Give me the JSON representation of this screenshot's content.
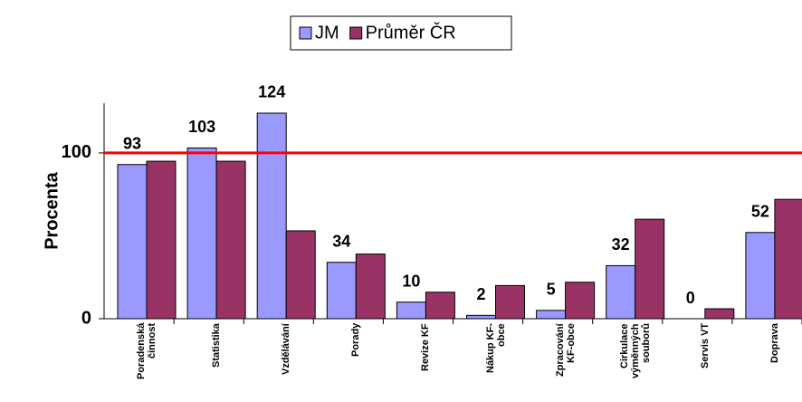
{
  "chart_data": {
    "type": "bar",
    "y_label": "Procenta",
    "categories": [
      "Poradenská\nčinnost",
      "Statistika",
      "Vzdělávání",
      "Porady",
      "Revize KF",
      "Nákup KF-\nobce",
      "Zpracování\nKF-obce",
      "Cirkulace\nvýměnných\nsouborů",
      "Servis VT",
      "Doprava"
    ],
    "series": [
      {
        "name": "JM",
        "color": "#9999ff",
        "values": [
          93,
          103,
          124,
          34,
          10,
          2,
          5,
          32,
          0,
          52
        ],
        "labels": true
      },
      {
        "name": "Průměr ČR",
        "color": "#993366",
        "values": [
          95,
          95,
          53,
          39,
          16,
          20,
          22,
          60,
          6,
          72
        ]
      }
    ],
    "reference_line": {
      "value": 100,
      "color": "#ff0000"
    },
    "ylim": [
      0,
      130
    ],
    "yticks": [
      0,
      100
    ]
  }
}
